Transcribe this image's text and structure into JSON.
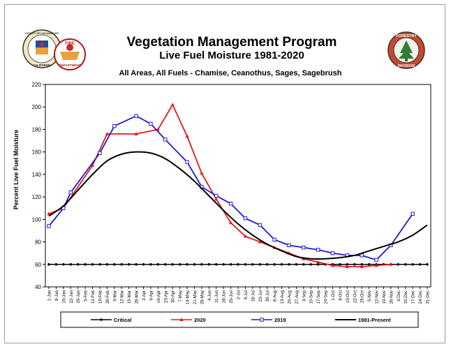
{
  "header": {
    "title": "Vegetation Management Program",
    "subtitle": "Live Fuel Moisture 1981-2020",
    "description": "All Areas, All Fuels - Chamise, Ceanothus, Sages, Sagebrush"
  },
  "logos": {
    "county_seal": "County of Los Angeles seal",
    "fire_badge": "Fire Department badge",
    "forestry_badge": "Forestry Division badge",
    "county_seal_text": [
      "COUNTY OF LOS ANGELES",
      "CALIFORNIA"
    ],
    "fire_badge_text": [
      "FIRE",
      "DEPARTMENT"
    ],
    "forestry_badge_text": [
      "FORESTRY",
      "DIVISION"
    ]
  },
  "chart_data": {
    "type": "line",
    "ylabel": "Percent Live Fuel Moisture",
    "xlabel": "",
    "ylim": [
      40,
      220
    ],
    "yticks": [
      40,
      60,
      80,
      100,
      120,
      140,
      160,
      180,
      200,
      220
    ],
    "grid": false,
    "legend_position": "bottom",
    "categories": [
      "1-Jan",
      "8-Jan",
      "15-Jan",
      "22-Jan",
      "29-Jan",
      "5-Feb",
      "12-Feb",
      "19-Feb",
      "26-Feb",
      "5-Mar",
      "12-Mar",
      "19-Mar",
      "26-Mar",
      "2-Apr",
      "9-Apr",
      "16-Apr",
      "23-Apr",
      "30-Apr",
      "7-May",
      "14-May",
      "21-May",
      "28-May",
      "4-Jun",
      "11-Jun",
      "18-Jun",
      "25-Jun",
      "2-Jul",
      "9-Jul",
      "16-Jul",
      "23-Jul",
      "30-Jul",
      "6-Aug",
      "13-Aug",
      "20-Aug",
      "27-Aug",
      "3-Sep",
      "10-Sep",
      "17-Sep",
      "24-Sep",
      "1-Oct",
      "8-Oct",
      "15-Oct",
      "22-Oct",
      "29-Oct",
      "5-Nov",
      "12-Nov",
      "19-Nov",
      "26-Nov",
      "3-Dec",
      "10-Dec",
      "17-Dec",
      "24-Dec",
      "31-Dec"
    ],
    "series": [
      {
        "name": "Critical",
        "color": "#000000",
        "marker": "dot",
        "points": [
          [
            0,
            60
          ],
          [
            1,
            60
          ],
          [
            2,
            60
          ],
          [
            3,
            60
          ],
          [
            4,
            60
          ],
          [
            5,
            60
          ],
          [
            6,
            60
          ],
          [
            7,
            60
          ],
          [
            8,
            60
          ],
          [
            9,
            60
          ],
          [
            10,
            60
          ],
          [
            11,
            60
          ],
          [
            12,
            60
          ],
          [
            13,
            60
          ],
          [
            14,
            60
          ],
          [
            15,
            60
          ],
          [
            16,
            60
          ],
          [
            17,
            60
          ],
          [
            18,
            60
          ],
          [
            19,
            60
          ],
          [
            20,
            60
          ],
          [
            21,
            60
          ],
          [
            22,
            60
          ],
          [
            23,
            60
          ],
          [
            24,
            60
          ],
          [
            25,
            60
          ],
          [
            26,
            60
          ],
          [
            27,
            60
          ],
          [
            28,
            60
          ],
          [
            29,
            60
          ],
          [
            30,
            60
          ],
          [
            31,
            60
          ],
          [
            32,
            60
          ],
          [
            33,
            60
          ],
          [
            34,
            60
          ],
          [
            35,
            60
          ],
          [
            36,
            60
          ],
          [
            37,
            60
          ],
          [
            38,
            60
          ],
          [
            39,
            60
          ],
          [
            40,
            60
          ],
          [
            41,
            60
          ],
          [
            42,
            60
          ],
          [
            43,
            60
          ],
          [
            44,
            60
          ],
          [
            45,
            60
          ],
          [
            46,
            60
          ],
          [
            47,
            60
          ],
          [
            48,
            60
          ],
          [
            49,
            60
          ],
          [
            50,
            60
          ],
          [
            51,
            60
          ],
          [
            52,
            60
          ]
        ]
      },
      {
        "name": "2020",
        "color": "#e8161b",
        "marker": "triangle",
        "points": [
          [
            0,
            105
          ],
          [
            2,
            110
          ],
          [
            6,
            148
          ],
          [
            8,
            176
          ],
          [
            12,
            176
          ],
          [
            15,
            180
          ],
          [
            17,
            202
          ],
          [
            19,
            174
          ],
          [
            21,
            141
          ],
          [
            23,
            118
          ],
          [
            25,
            97
          ],
          [
            27,
            85
          ],
          [
            29,
            80
          ],
          [
            31,
            75
          ],
          [
            33,
            70
          ],
          [
            35,
            65
          ],
          [
            37,
            62
          ],
          [
            39,
            59
          ],
          [
            41,
            58
          ],
          [
            43,
            58
          ],
          [
            45,
            59
          ],
          [
            47,
            60
          ]
        ]
      },
      {
        "name": "2019",
        "color": "#1c1ccf",
        "marker": "square",
        "points": [
          [
            0,
            94
          ],
          [
            2,
            110
          ],
          [
            3,
            124
          ],
          [
            7,
            159
          ],
          [
            9,
            183
          ],
          [
            12,
            192
          ],
          [
            14,
            185
          ],
          [
            16,
            171
          ],
          [
            19,
            151
          ],
          [
            21,
            129
          ],
          [
            23,
            121
          ],
          [
            25,
            114
          ],
          [
            27,
            101
          ],
          [
            29,
            95
          ],
          [
            31,
            82
          ],
          [
            33,
            77
          ],
          [
            35,
            75
          ],
          [
            37,
            73
          ],
          [
            39,
            70
          ],
          [
            41,
            68
          ],
          [
            43,
            68
          ],
          [
            45,
            64
          ],
          [
            47,
            77
          ],
          [
            50,
            105
          ]
        ]
      },
      {
        "name": "1981-Present",
        "color": "#000000",
        "marker": "none",
        "points": [
          [
            0,
            103
          ],
          [
            2,
            112
          ],
          [
            4,
            126
          ],
          [
            6,
            140
          ],
          [
            8,
            152
          ],
          [
            10,
            158
          ],
          [
            12,
            160
          ],
          [
            14,
            159
          ],
          [
            16,
            154
          ],
          [
            18,
            145
          ],
          [
            20,
            134
          ],
          [
            22,
            121
          ],
          [
            24,
            108
          ],
          [
            26,
            96
          ],
          [
            28,
            86
          ],
          [
            30,
            78
          ],
          [
            32,
            72
          ],
          [
            34,
            67
          ],
          [
            36,
            65
          ],
          [
            38,
            65
          ],
          [
            40,
            66
          ],
          [
            42,
            68
          ],
          [
            44,
            72
          ],
          [
            46,
            76
          ],
          [
            48,
            80
          ],
          [
            50,
            86
          ],
          [
            52,
            95
          ]
        ]
      }
    ]
  }
}
